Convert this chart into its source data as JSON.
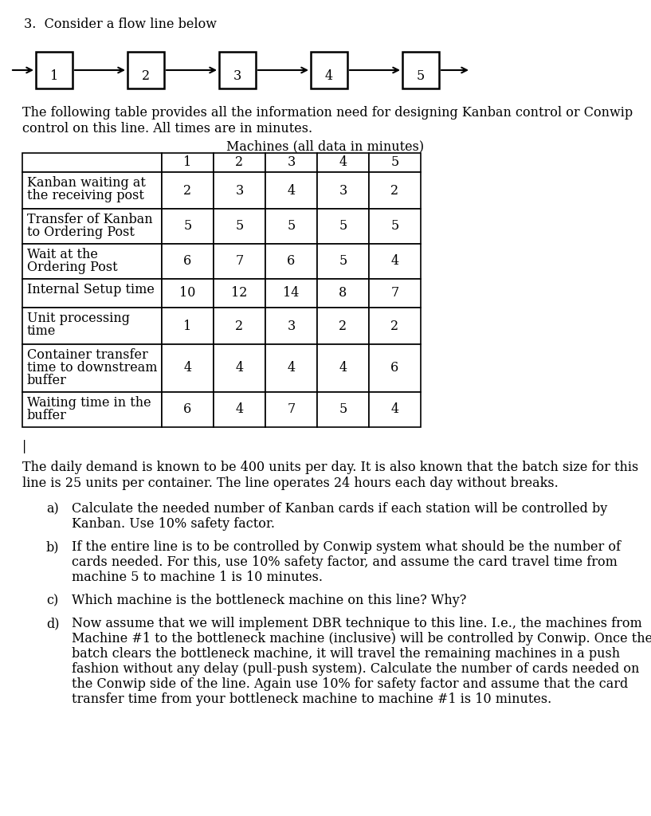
{
  "title_number": "3.",
  "title_text": "  Consider a flow line below",
  "flow_boxes": [
    "1",
    "2",
    "3",
    "4",
    "5"
  ],
  "table_title": "Machines (all data in minutes)",
  "table_header": [
    "",
    "1",
    "2",
    "3",
    "4",
    "5"
  ],
  "table_rows": [
    [
      "Kanban waiting at\nthe receiving post",
      "2",
      "3",
      "4",
      "3",
      "2"
    ],
    [
      "Transfer of Kanban\nto Ordering Post",
      "5",
      "5",
      "5",
      "5",
      "5"
    ],
    [
      "Wait at the\nOrdering Post",
      "6",
      "7",
      "6",
      "5",
      "4"
    ],
    [
      "Internal Setup time",
      "10",
      "12",
      "14",
      "8",
      "7"
    ],
    [
      "Unit processing\ntime",
      "1",
      "2",
      "3",
      "2",
      "2"
    ],
    [
      "Container transfer\ntime to downstream\nbuffer",
      "4",
      "4",
      "4",
      "4",
      "6"
    ],
    [
      "Waiting time in the\nbuffer",
      "6",
      "4",
      "7",
      "5",
      "4"
    ]
  ],
  "intro_text": "The following table provides all the information need for designing Kanban control or Conwip\ncontrol on this line. All times are in minutes.",
  "paragraph": "The daily demand is known to be 400 units per day. It is also known that the batch size for this\nline is 25 units per container. The line operates 24 hours each day without breaks.",
  "questions": [
    {
      "letter": "a)",
      "text": "Calculate the needed number of Kanban cards if each station will be controlled by\nKanban. Use 10% safety factor."
    },
    {
      "letter": "b)",
      "text": "If the entire line is to be controlled by Conwip system what should be the number of\ncards needed. For this, use 10% safety factor, and assume the card travel time from\nmachine 5 to machine 1 is 10 minutes."
    },
    {
      "letter": "c)",
      "text": "Which machine is the bottleneck machine on this line? Why?"
    },
    {
      "letter": "d)",
      "text": "Now assume that we will implement DBR technique to this line. I.e., the machines from\nMachine #1 to the bottleneck machine (inclusive) will be controlled by Conwip. Once the\nbatch clears the bottleneck machine, it will travel the remaining machines in a push\nfashion without any delay (pull-push system). Calculate the number of cards needed on\nthe Conwip side of the line. Again use 10% for safety factor and assume that the card\ntransfer time from your bottleneck machine to machine #1 is 10 minutes."
    }
  ],
  "bg_color": "#ffffff",
  "text_color": "#000000"
}
